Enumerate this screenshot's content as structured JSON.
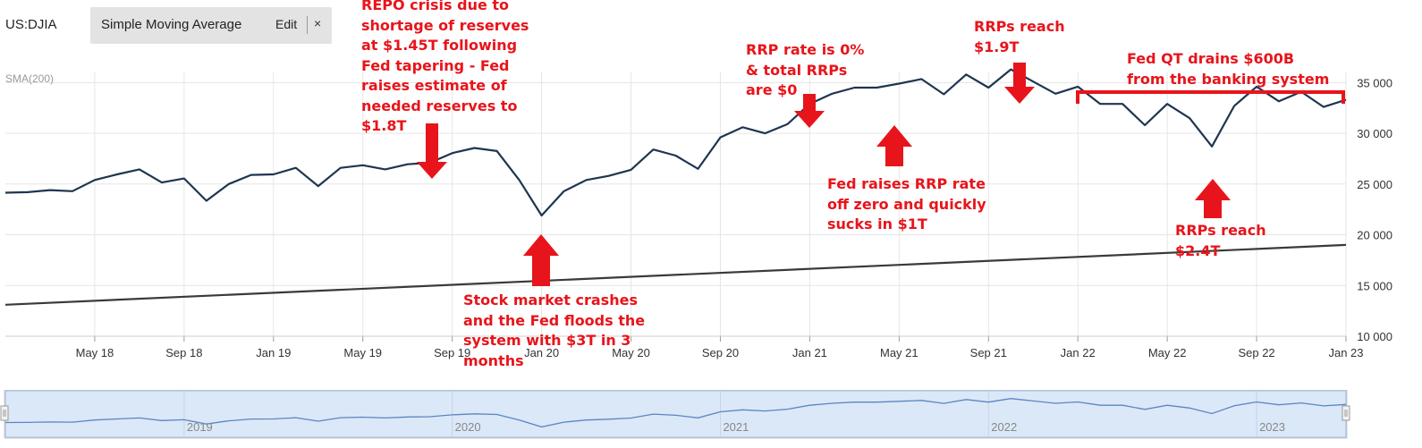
{
  "header": {
    "symbol": "US:DJIA",
    "indicator": "Simple Moving Average",
    "edit_label": "Edit",
    "close_label": "×",
    "sma_label": "SMA(200)"
  },
  "colors": {
    "price_line": "#1f3550",
    "sma_line": "#3a3a3a",
    "grid": "#e6e6e6",
    "annotation": "#e8141b",
    "navigator_fill": "#dbe8f8",
    "navigator_line": "#5b86c0"
  },
  "chart_data": {
    "type": "line",
    "title": "US:DJIA",
    "xlabel": "",
    "ylabel": "",
    "ylim": [
      10000,
      36000
    ],
    "yticks": [
      "35 000",
      "30 000",
      "25 000",
      "20 000",
      "15 000",
      "10 000"
    ],
    "ytick_values": [
      35000,
      30000,
      25000,
      20000,
      15000,
      10000
    ],
    "xticks": [
      "May 18",
      "Sep 18",
      "Jan 19",
      "May 19",
      "Sep 19",
      "Jan 20",
      "May 20",
      "Sep 20",
      "Jan 21",
      "May 21",
      "Sep 21",
      "Jan 22",
      "May 22",
      "Sep 22",
      "Jan 23"
    ],
    "xtick_months": [
      4,
      8,
      12,
      16,
      20,
      24,
      28,
      32,
      36,
      40,
      44,
      48,
      52,
      56,
      60
    ],
    "x_range_months": [
      0,
      60.0
    ],
    "series": [
      {
        "name": "DJIA",
        "x_months": [
          0,
          1,
          2,
          3,
          4,
          5,
          6,
          7,
          8,
          9,
          10,
          11,
          12,
          13,
          14,
          15,
          16,
          17,
          18,
          19,
          20,
          21,
          22,
          23,
          24,
          25,
          26,
          27,
          28,
          29,
          30,
          31,
          32,
          33,
          34,
          35,
          36,
          37,
          38,
          39,
          40,
          41,
          42,
          43,
          44,
          45,
          46,
          47,
          48,
          49,
          50,
          51,
          52,
          53,
          54,
          55,
          56,
          57,
          58,
          59,
          60
        ],
        "values": [
          24150,
          24200,
          24400,
          24300,
          25400,
          25950,
          26450,
          25150,
          25550,
          23350,
          25000,
          25900,
          25950,
          26600,
          24800,
          26600,
          26850,
          26450,
          26950,
          27100,
          28050,
          28550,
          28250,
          25400,
          21900,
          24300,
          25400,
          25800,
          26400,
          28400,
          27800,
          26500,
          29600,
          30600,
          30000,
          30900,
          32900,
          33900,
          34500,
          34500,
          34900,
          35350,
          33850,
          35800,
          34500,
          36300,
          35100,
          33900,
          34600,
          32900,
          32900,
          30800,
          32900,
          31500,
          28700,
          32700,
          34600,
          33150,
          34100,
          32600,
          33300
        ]
      },
      {
        "name": "SMA(200)",
        "x_months": [
          0,
          60
        ],
        "values": [
          13100,
          19000
        ]
      }
    ],
    "navigator": {
      "labels": [
        "2019",
        "2020",
        "2021",
        "2022",
        "2023"
      ]
    },
    "annotations": [
      {
        "id": "repo-crisis",
        "lines": [
          "REPO crisis due to",
          "shortage of reserves",
          "at $1.45T following",
          "Fed tapering - Fed",
          "raises estimate of",
          "needed reserves to",
          "$1.8T"
        ],
        "arrow": "down",
        "at_month": 19.5
      },
      {
        "id": "market-crash",
        "lines": [
          "Stock market crashes",
          "and the Fed floods the",
          "system with $3T in 3",
          "months"
        ],
        "arrow": "up",
        "at_month": 24
      },
      {
        "id": "rrp-zero",
        "lines": [
          "RRP rate is 0%",
          "& total RRPs",
          "are $0"
        ],
        "arrow": "down",
        "at_month": 36
      },
      {
        "id": "rrp-off-zero",
        "lines": [
          "Fed raises RRP rate",
          "off zero and quickly",
          "sucks in $1T"
        ],
        "arrow": "up",
        "at_month": 41.4
      },
      {
        "id": "rrp-19t",
        "lines": [
          "RRPs reach",
          "$1.9T"
        ],
        "arrow": "down",
        "at_month": 45.4
      },
      {
        "id": "qt-drain",
        "lines": [
          "Fed QT drains $600B",
          "from the banking system"
        ],
        "arrow": "bracket",
        "at_month": 50
      },
      {
        "id": "rrp-24t",
        "lines": [
          "RRPs reach",
          "$2.4T"
        ],
        "arrow": "up",
        "at_month": 54
      }
    ]
  }
}
